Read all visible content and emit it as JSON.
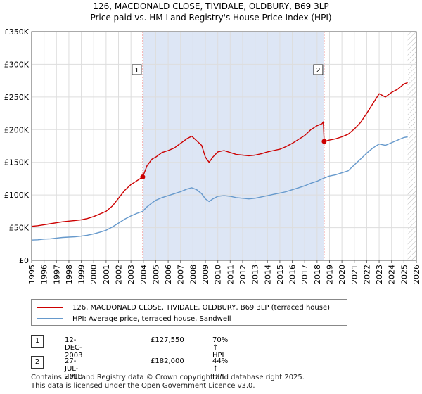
{
  "title_line1": "126, MACDONALD CLOSE, TIVIDALE, OLDBURY, B69 3LP",
  "title_line2": "Price paid vs. HM Land Registry's House Price Index (HPI)",
  "colors": {
    "property": "#cc0000",
    "hpi": "#6699cc",
    "shade": "#dde6f5",
    "grid": "#dddddd",
    "vline": "#ee8888"
  },
  "legend": {
    "property_label": "126, MACDONALD CLOSE, TIVIDALE, OLDBURY, B69 3LP (terraced house)",
    "hpi_label": "HPI: Average price, terraced house, Sandwell"
  },
  "sales": [
    {
      "marker": "1",
      "date": "12-DEC-2003",
      "price": "£127,550",
      "hpi_change": "70% ↑ HPI"
    },
    {
      "marker": "2",
      "date": "27-JUL-2018",
      "price": "£182,000",
      "hpi_change": "44% ↑ HPI"
    }
  ],
  "footer_line1": "Contains HM Land Registry data © Crown copyright and database right 2025.",
  "footer_line2": "This data is licensed under the Open Government Licence v3.0.",
  "chart_data": {
    "type": "line",
    "xlim": [
      1995,
      2026
    ],
    "ylim": [
      0,
      350000
    ],
    "x_ticks": [
      "1995",
      "1996",
      "1997",
      "1998",
      "1999",
      "2000",
      "2001",
      "2002",
      "2003",
      "2004",
      "2005",
      "2006",
      "2007",
      "2008",
      "2009",
      "2010",
      "2011",
      "2012",
      "2013",
      "2014",
      "2015",
      "2016",
      "2017",
      "2018",
      "2019",
      "2020",
      "2021",
      "2022",
      "2023",
      "2024",
      "2025",
      "2026"
    ],
    "y_ticks": [
      {
        "value": 0,
        "label": "£0"
      },
      {
        "value": 50000,
        "label": "£50K"
      },
      {
        "value": 100000,
        "label": "£100K"
      },
      {
        "value": 150000,
        "label": "£150K"
      },
      {
        "value": 200000,
        "label": "£200K"
      },
      {
        "value": 250000,
        "label": "£250K"
      },
      {
        "value": 300000,
        "label": "£300K"
      },
      {
        "value": 350000,
        "label": "£350K"
      }
    ],
    "shaded_region": [
      2003.95,
      2018.57
    ],
    "forecast_start": 2025.3,
    "sale_points": [
      {
        "marker": "1",
        "x": 2003.95,
        "y": 127550
      },
      {
        "marker": "2",
        "x": 2018.57,
        "y": 182000
      }
    ],
    "series": [
      {
        "name": "126, MACDONALD CLOSE, TIVIDALE, OLDBURY, B69 3LP (terraced house)",
        "key": "property",
        "x": [
          1995,
          1995.5,
          1996,
          1996.5,
          1997,
          1997.5,
          1998,
          1998.5,
          1999,
          1999.5,
          2000,
          2000.5,
          2001,
          2001.5,
          2002,
          2002.5,
          2003,
          2003.5,
          2003.95,
          2004.3,
          2004.7,
          2005,
          2005.5,
          2006,
          2006.5,
          2007,
          2007.5,
          2007.9,
          2008.3,
          2008.7,
          2009,
          2009.3,
          2009.6,
          2010,
          2010.5,
          2011,
          2011.5,
          2012,
          2012.5,
          2013,
          2013.5,
          2014,
          2014.5,
          2015,
          2015.5,
          2016,
          2016.5,
          2017,
          2017.5,
          2018,
          2018.4,
          2018.5,
          2018.57,
          2019,
          2019.5,
          2020,
          2020.5,
          2021,
          2021.5,
          2022,
          2022.5,
          2023,
          2023.5,
          2024,
          2024.5,
          2025,
          2025.3
        ],
        "y": [
          52000,
          53000,
          54500,
          56000,
          57500,
          59000,
          60000,
          61000,
          62000,
          64000,
          67000,
          71000,
          75000,
          83000,
          95000,
          107000,
          116000,
          122000,
          127550,
          145000,
          155000,
          158000,
          165000,
          168000,
          172000,
          179000,
          186000,
          190000,
          183000,
          176000,
          158000,
          150000,
          158000,
          166000,
          168000,
          165000,
          162000,
          161000,
          160000,
          161000,
          163000,
          166000,
          168000,
          170000,
          174000,
          179000,
          185000,
          191000,
          200000,
          206000,
          209000,
          212000,
          182000,
          184000,
          186000,
          189000,
          193000,
          201000,
          211000,
          225000,
          240000,
          255000,
          250000,
          257000,
          262000,
          270000,
          272000
        ]
      },
      {
        "name": "HPI: Average price, terraced house, Sandwell",
        "key": "hpi",
        "x": [
          1995,
          1995.5,
          1996,
          1996.5,
          1997,
          1997.5,
          1998,
          1998.5,
          1999,
          1999.5,
          2000,
          2000.5,
          2001,
          2001.5,
          2002,
          2002.5,
          2003,
          2003.5,
          2003.95,
          2004.3,
          2004.7,
          2005,
          2005.5,
          2006,
          2006.5,
          2007,
          2007.5,
          2007.9,
          2008.3,
          2008.7,
          2009,
          2009.3,
          2009.6,
          2010,
          2010.5,
          2011,
          2011.5,
          2012,
          2012.5,
          2013,
          2013.5,
          2014,
          2014.5,
          2015,
          2015.5,
          2016,
          2016.5,
          2017,
          2017.5,
          2018,
          2018.57,
          2019,
          2019.5,
          2020,
          2020.5,
          2021,
          2021.5,
          2022,
          2022.5,
          2023,
          2023.5,
          2024,
          2024.5,
          2025,
          2025.3
        ],
        "y": [
          31000,
          31500,
          32500,
          33000,
          34000,
          35000,
          35500,
          36000,
          37000,
          38500,
          40500,
          43000,
          46000,
          51000,
          57000,
          63000,
          68000,
          72000,
          75000,
          82000,
          88000,
          92000,
          96000,
          99000,
          102000,
          105000,
          109000,
          111000,
          108000,
          102000,
          94000,
          90000,
          94000,
          98000,
          99000,
          98000,
          96000,
          95000,
          94000,
          95000,
          97000,
          99000,
          101000,
          103000,
          105000,
          108000,
          111000,
          114000,
          118000,
          121000,
          126000,
          129000,
          131000,
          134000,
          137000,
          146000,
          155000,
          164000,
          172000,
          178000,
          176000,
          180000,
          184000,
          188000,
          189000
        ]
      }
    ]
  }
}
